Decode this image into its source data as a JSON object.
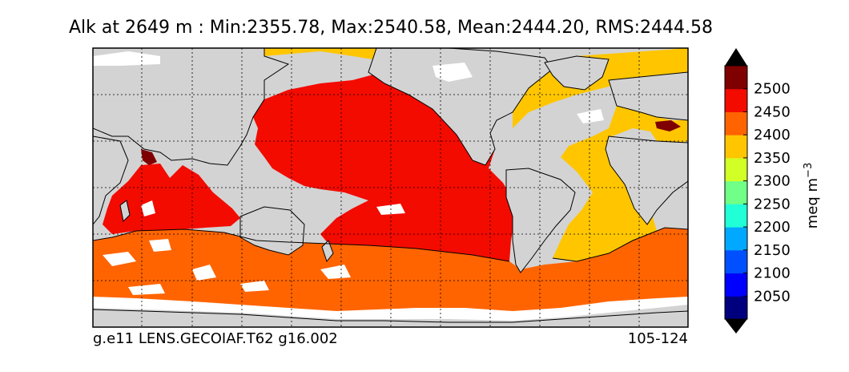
{
  "title": "Alk at 2649 m : Min:2355.78, Max:2540.58, Mean:2444.20, RMS:2444.58",
  "footer": {
    "case_name": "g.e11 LENS.GECOIAF.T62 g16.002",
    "year_range": "105-124"
  },
  "colorbar": {
    "label": "meq m",
    "label_exponent": "−3",
    "ticks": [
      "2050",
      "2100",
      "2150",
      "2200",
      "2250",
      "2300",
      "2350",
      "2400",
      "2450",
      "2500"
    ],
    "colors": [
      "#00007f",
      "#0000ff",
      "#0050ff",
      "#00a8ff",
      "#21ffd6",
      "#70ff87",
      "#d1ff26",
      "#ffc600",
      "#ff6400",
      "#f30b00",
      "#7f0000"
    ],
    "extend": "both"
  },
  "map": {
    "land_color": "#d3d3d3",
    "missing_color": "#ffffff",
    "gridlines": "dashed",
    "regions": {
      "pacific_indian": "#f30b00",
      "atlantic": "#ffc600",
      "southern_ocean": "#ff6400",
      "high_values": "#7f0000"
    }
  }
}
